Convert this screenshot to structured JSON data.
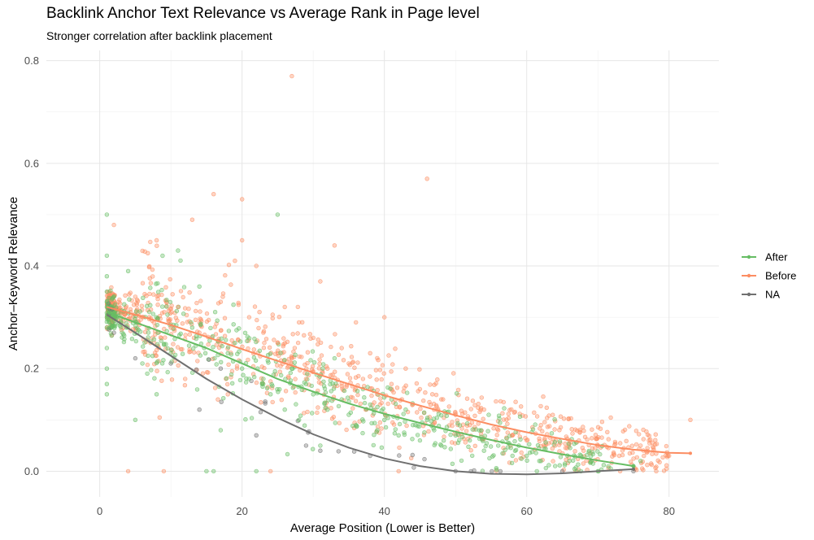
{
  "chart_data": {
    "type": "scatter",
    "title": "Backlink Anchor Text Relevance vs Average Rank in Page level",
    "subtitle": "Stronger correlation after backlink placement",
    "xlabel": "Average Position (Lower is Better)",
    "ylabel": "Anchor–Keyword Relevance",
    "xlim": [
      -7.5,
      87
    ],
    "ylim": [
      -0.05,
      0.82
    ],
    "x_ticks": [
      0,
      20,
      40,
      60,
      80
    ],
    "y_ticks": [
      0.0,
      0.2,
      0.4,
      0.6,
      0.8
    ],
    "grid": true,
    "legend_position": "right",
    "series": [
      {
        "name": "After",
        "color": "#66BD63",
        "trend": [
          [
            1,
            0.31
          ],
          [
            5,
            0.29
          ],
          [
            10,
            0.265
          ],
          [
            15,
            0.24
          ],
          [
            20,
            0.21
          ],
          [
            25,
            0.18
          ],
          [
            30,
            0.155
          ],
          [
            35,
            0.132
          ],
          [
            40,
            0.112
          ],
          [
            45,
            0.094
          ],
          [
            50,
            0.077
          ],
          [
            55,
            0.061
          ],
          [
            60,
            0.046
          ],
          [
            65,
            0.033
          ],
          [
            70,
            0.021
          ],
          [
            75,
            0.01
          ]
        ],
        "points": [
          [
            1,
            0.15
          ],
          [
            1,
            0.17
          ],
          [
            1,
            0.2
          ],
          [
            1,
            0.24
          ],
          [
            1,
            0.28
          ],
          [
            1,
            0.3
          ],
          [
            1,
            0.32
          ],
          [
            1,
            0.33
          ],
          [
            1,
            0.35
          ],
          [
            1,
            0.38
          ],
          [
            1,
            0.42
          ],
          [
            1,
            0.5
          ],
          [
            2,
            0.3
          ],
          [
            3,
            0.29
          ],
          [
            4,
            0.39
          ],
          [
            5,
            0.1
          ],
          [
            6,
            0.21
          ],
          [
            8,
            0.15
          ],
          [
            10,
            0.23
          ],
          [
            11,
            0.43
          ],
          [
            13,
            0.28
          ],
          [
            14,
            0.36
          ],
          [
            15,
            0.0
          ],
          [
            16,
            0.0
          ],
          [
            17,
            0.08
          ],
          [
            18,
            0.23
          ],
          [
            19,
            0.25
          ],
          [
            20,
            0.2
          ],
          [
            21,
            0.18
          ],
          [
            22,
            0.0
          ],
          [
            23,
            0.18
          ],
          [
            24,
            0.15
          ],
          [
            25,
            0.5
          ],
          [
            26,
            0.12
          ],
          [
            27,
            0.2
          ],
          [
            28,
            0.1
          ],
          [
            29,
            0.17
          ],
          [
            30,
            0.15
          ],
          [
            31,
            0.05
          ],
          [
            32,
            0.12
          ],
          [
            33,
            0.22
          ],
          [
            34,
            0.14
          ],
          [
            35,
            0.11
          ],
          [
            36,
            0.09
          ],
          [
            37,
            0.16
          ],
          [
            38,
            0.13
          ],
          [
            39,
            0.08
          ],
          [
            40,
            0.1
          ],
          [
            41,
            0.14
          ],
          [
            42,
            0.07
          ],
          [
            43,
            0.12
          ],
          [
            44,
            0.09
          ],
          [
            45,
            0.06
          ],
          [
            46,
            0.1
          ],
          [
            47,
            0.08
          ],
          [
            48,
            0.05
          ],
          [
            50,
            0.07
          ],
          [
            52,
            0.06
          ],
          [
            54,
            0.04
          ],
          [
            56,
            0.05
          ],
          [
            58,
            0.03
          ],
          [
            60,
            0.03
          ],
          [
            62,
            0.02
          ],
          [
            64,
            0.01
          ],
          [
            66,
            0.02
          ],
          [
            70,
            0.0
          ],
          [
            75,
            0.01
          ],
          [
            76,
            0.02
          ]
        ]
      },
      {
        "name": "Before",
        "color": "#FC8D62",
        "trend": [
          [
            1,
            0.32
          ],
          [
            5,
            0.305
          ],
          [
            10,
            0.285
          ],
          [
            15,
            0.262
          ],
          [
            20,
            0.238
          ],
          [
            25,
            0.215
          ],
          [
            30,
            0.192
          ],
          [
            35,
            0.17
          ],
          [
            40,
            0.148
          ],
          [
            45,
            0.128
          ],
          [
            50,
            0.109
          ],
          [
            55,
            0.091
          ],
          [
            60,
            0.076
          ],
          [
            65,
            0.063
          ],
          [
            70,
            0.051
          ],
          [
            75,
            0.042
          ],
          [
            80,
            0.036
          ],
          [
            83,
            0.035
          ]
        ],
        "points": [
          [
            2,
            0.48
          ],
          [
            3,
            0.31
          ],
          [
            4,
            0.0
          ],
          [
            5,
            0.34
          ],
          [
            8,
            0.45
          ],
          [
            9,
            0.0
          ],
          [
            10,
            0.28
          ],
          [
            11,
            0.32
          ],
          [
            12,
            0.18
          ],
          [
            13,
            0.49
          ],
          [
            14,
            0.27
          ],
          [
            16,
            0.54
          ],
          [
            17,
            0.33
          ],
          [
            18,
            0.15
          ],
          [
            19,
            0.41
          ],
          [
            20,
            0.53
          ],
          [
            20,
            0.45
          ],
          [
            21,
            0.3
          ],
          [
            22,
            0.4
          ],
          [
            23,
            0.27
          ],
          [
            24,
            0.0
          ],
          [
            25,
            0.25
          ],
          [
            26,
            0.32
          ],
          [
            27,
            0.77
          ],
          [
            27,
            0.22
          ],
          [
            28,
            0.29
          ],
          [
            29,
            0.18
          ],
          [
            30,
            0.26
          ],
          [
            31,
            0.37
          ],
          [
            32,
            0.2
          ],
          [
            33,
            0.44
          ],
          [
            34,
            0.24
          ],
          [
            35,
            0.21
          ],
          [
            36,
            0.29
          ],
          [
            37,
            0.18
          ],
          [
            38,
            0.23
          ],
          [
            39,
            0.15
          ],
          [
            40,
            0.3
          ],
          [
            41,
            0.17
          ],
          [
            42,
            0.0
          ],
          [
            43,
            0.2
          ],
          [
            44,
            0.13
          ],
          [
            45,
            0.16
          ],
          [
            46,
            0.57
          ],
          [
            47,
            0.12
          ],
          [
            48,
            0.14
          ],
          [
            50,
            0.11
          ],
          [
            52,
            0.09
          ],
          [
            54,
            0.12
          ],
          [
            56,
            0.08
          ],
          [
            58,
            0.07
          ],
          [
            60,
            0.06
          ],
          [
            62,
            0.09
          ],
          [
            64,
            0.05
          ],
          [
            66,
            0.06
          ],
          [
            68,
            0.04
          ],
          [
            70,
            0.05
          ],
          [
            73,
            0.03
          ],
          [
            76,
            0.05
          ],
          [
            80,
            0.03
          ],
          [
            83,
            0.1
          ]
        ]
      },
      {
        "name": "NA",
        "color": "#707070",
        "trend": [
          [
            1,
            0.305
          ],
          [
            5,
            0.27
          ],
          [
            10,
            0.225
          ],
          [
            15,
            0.18
          ],
          [
            20,
            0.14
          ],
          [
            25,
            0.104
          ],
          [
            30,
            0.072
          ],
          [
            35,
            0.046
          ],
          [
            40,
            0.025
          ],
          [
            45,
            0.01
          ],
          [
            50,
            0.0
          ],
          [
            55,
            -0.005
          ],
          [
            60,
            -0.006
          ],
          [
            65,
            -0.004
          ],
          [
            70,
            0.0
          ],
          [
            75,
            0.004
          ]
        ],
        "points": [
          [
            2,
            0.27
          ],
          [
            5,
            0.22
          ],
          [
            10,
            0.21
          ],
          [
            14,
            0.12
          ],
          [
            17,
            0.2
          ],
          [
            22,
            0.07
          ],
          [
            29,
            0.05
          ],
          [
            31,
            0.04
          ],
          [
            38,
            0.03
          ],
          [
            50,
            0.0
          ],
          [
            65,
            0.0
          ],
          [
            75,
            0.0
          ]
        ]
      }
    ],
    "background_points": {
      "count": 1400,
      "note": "dense cloud following each trend"
    }
  }
}
